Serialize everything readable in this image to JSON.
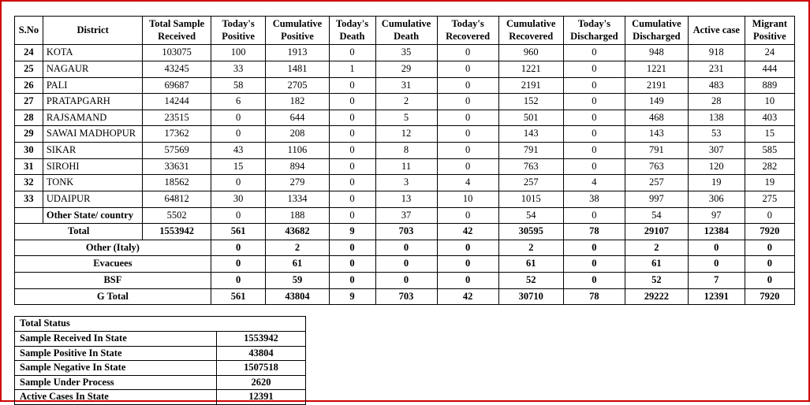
{
  "main": {
    "headers": [
      {
        "key": "sno",
        "label": "S.No",
        "cls": "col-sno"
      },
      {
        "key": "dist",
        "label": "District",
        "cls": "col-dist"
      },
      {
        "key": "samp",
        "label": "Total Sample Received",
        "cls": "col-samp"
      },
      {
        "key": "tpos",
        "label": "Today's Positive",
        "cls": "col-tpos"
      },
      {
        "key": "cpos",
        "label": "Cumulative Positive",
        "cls": "col-cpos"
      },
      {
        "key": "tdth",
        "label": "Today's Death",
        "cls": "col-tdth"
      },
      {
        "key": "cdth",
        "label": "Cumulative Death",
        "cls": "col-cdth"
      },
      {
        "key": "trec",
        "label": "Today's Recovered",
        "cls": "col-trec"
      },
      {
        "key": "crec",
        "label": "Cumulative Recovered",
        "cls": "col-crec"
      },
      {
        "key": "tdis",
        "label": "Today's Discharged",
        "cls": "col-tdis"
      },
      {
        "key": "cdis",
        "label": "Cumulative Discharged",
        "cls": "col-cdis"
      },
      {
        "key": "act",
        "label": "Active  case",
        "cls": "col-act"
      },
      {
        "key": "mig",
        "label": "Migrant Positive",
        "cls": "col-mig"
      }
    ],
    "rows": [
      {
        "sno": "24",
        "dist": "KOTA",
        "samp": "103075",
        "tpos": "100",
        "cpos": "1913",
        "tdth": "0",
        "cdth": "35",
        "trec": "0",
        "crec": "960",
        "tdis": "0",
        "cdis": "948",
        "act": "918",
        "mig": "24"
      },
      {
        "sno": "25",
        "dist": "NAGAUR",
        "samp": "43245",
        "tpos": "33",
        "cpos": "1481",
        "tdth": "1",
        "cdth": "29",
        "trec": "0",
        "crec": "1221",
        "tdis": "0",
        "cdis": "1221",
        "act": "231",
        "mig": "444"
      },
      {
        "sno": "26",
        "dist": "PALI",
        "samp": "69687",
        "tpos": "58",
        "cpos": "2705",
        "tdth": "0",
        "cdth": "31",
        "trec": "0",
        "crec": "2191",
        "tdis": "0",
        "cdis": "2191",
        "act": "483",
        "mig": "889"
      },
      {
        "sno": "27",
        "dist": "PRATAPGARH",
        "samp": "14244",
        "tpos": "6",
        "cpos": "182",
        "tdth": "0",
        "cdth": "2",
        "trec": "0",
        "crec": "152",
        "tdis": "0",
        "cdis": "149",
        "act": "28",
        "mig": "10"
      },
      {
        "sno": "28",
        "dist": "RAJSAMAND",
        "samp": "23515",
        "tpos": "0",
        "cpos": "644",
        "tdth": "0",
        "cdth": "5",
        "trec": "0",
        "crec": "501",
        "tdis": "0",
        "cdis": "468",
        "act": "138",
        "mig": "403"
      },
      {
        "sno": "29",
        "dist": "SAWAI MADHOPUR",
        "samp": "17362",
        "tpos": "0",
        "cpos": "208",
        "tdth": "0",
        "cdth": "12",
        "trec": "0",
        "crec": "143",
        "tdis": "0",
        "cdis": "143",
        "act": "53",
        "mig": "15"
      },
      {
        "sno": "30",
        "dist": "SIKAR",
        "samp": "57569",
        "tpos": "43",
        "cpos": "1106",
        "tdth": "0",
        "cdth": "8",
        "trec": "0",
        "crec": "791",
        "tdis": "0",
        "cdis": "791",
        "act": "307",
        "mig": "585"
      },
      {
        "sno": "31",
        "dist": "SIROHI",
        "samp": "33631",
        "tpos": "15",
        "cpos": "894",
        "tdth": "0",
        "cdth": "11",
        "trec": "0",
        "crec": "763",
        "tdis": "0",
        "cdis": "763",
        "act": "120",
        "mig": "282"
      },
      {
        "sno": "32",
        "dist": "TONK",
        "samp": "18562",
        "tpos": "0",
        "cpos": "279",
        "tdth": "0",
        "cdth": "3",
        "trec": "4",
        "crec": "257",
        "tdis": "4",
        "cdis": "257",
        "act": "19",
        "mig": "19"
      },
      {
        "sno": "33",
        "dist": "UDAIPUR",
        "samp": "64812",
        "tpos": "30",
        "cpos": "1334",
        "tdth": "0",
        "cdth": "13",
        "trec": "10",
        "crec": "1015",
        "tdis": "38",
        "cdis": "997",
        "act": "306",
        "mig": "275"
      },
      {
        "sno": "",
        "dist": "Other State/ country",
        "samp": "5502",
        "tpos": "0",
        "cpos": "188",
        "tdth": "0",
        "cdth": "37",
        "trec": "0",
        "crec": "54",
        "tdis": "0",
        "cdis": "54",
        "act": "97",
        "mig": "0",
        "dist_bold": true
      }
    ],
    "summary": [
      {
        "label": "Total",
        "span2_center": true,
        "samp": "1553942",
        "tpos": "561",
        "cpos": "43682",
        "tdth": "9",
        "cdth": "703",
        "trec": "42",
        "crec": "30595",
        "tdis": "78",
        "cdis": "29107",
        "act": "12384",
        "mig": "7920"
      },
      {
        "label": "Other (Italy)",
        "span3_center": true,
        "tpos": "0",
        "cpos": "2",
        "tdth": "0",
        "cdth": "0",
        "trec": "0",
        "crec": "2",
        "tdis": "0",
        "cdis": "2",
        "act": "0",
        "mig": "0"
      },
      {
        "label": "Evacuees",
        "span3_center": true,
        "tpos": "0",
        "cpos": "61",
        "tdth": "0",
        "cdth": "0",
        "trec": "0",
        "crec": "61",
        "tdis": "0",
        "cdis": "61",
        "act": "0",
        "mig": "0"
      },
      {
        "label": "BSF",
        "span3_center": true,
        "tpos": "0",
        "cpos": "59",
        "tdth": "0",
        "cdth": "0",
        "trec": "0",
        "crec": "52",
        "tdis": "0",
        "cdis": "52",
        "act": "7",
        "mig": "0"
      },
      {
        "label": "G Total",
        "span3_center": true,
        "tpos": "561",
        "cpos": "43804",
        "tdth": "9",
        "cdth": "703",
        "trec": "42",
        "crec": "30710",
        "tdis": "78",
        "cdis": "29222",
        "act": "12391",
        "mig": "7920"
      }
    ]
  },
  "status": {
    "title": "Total Status",
    "rows": [
      {
        "label": "Sample Received In State",
        "value": "1553942"
      },
      {
        "label": "Sample Positive In State",
        "value": "43804"
      },
      {
        "label": "Sample Negative In State",
        "value": "1507518"
      },
      {
        "label": "Sample Under Process",
        "value": "2620"
      },
      {
        "label": "Active Cases In State",
        "value": "12391"
      }
    ]
  }
}
